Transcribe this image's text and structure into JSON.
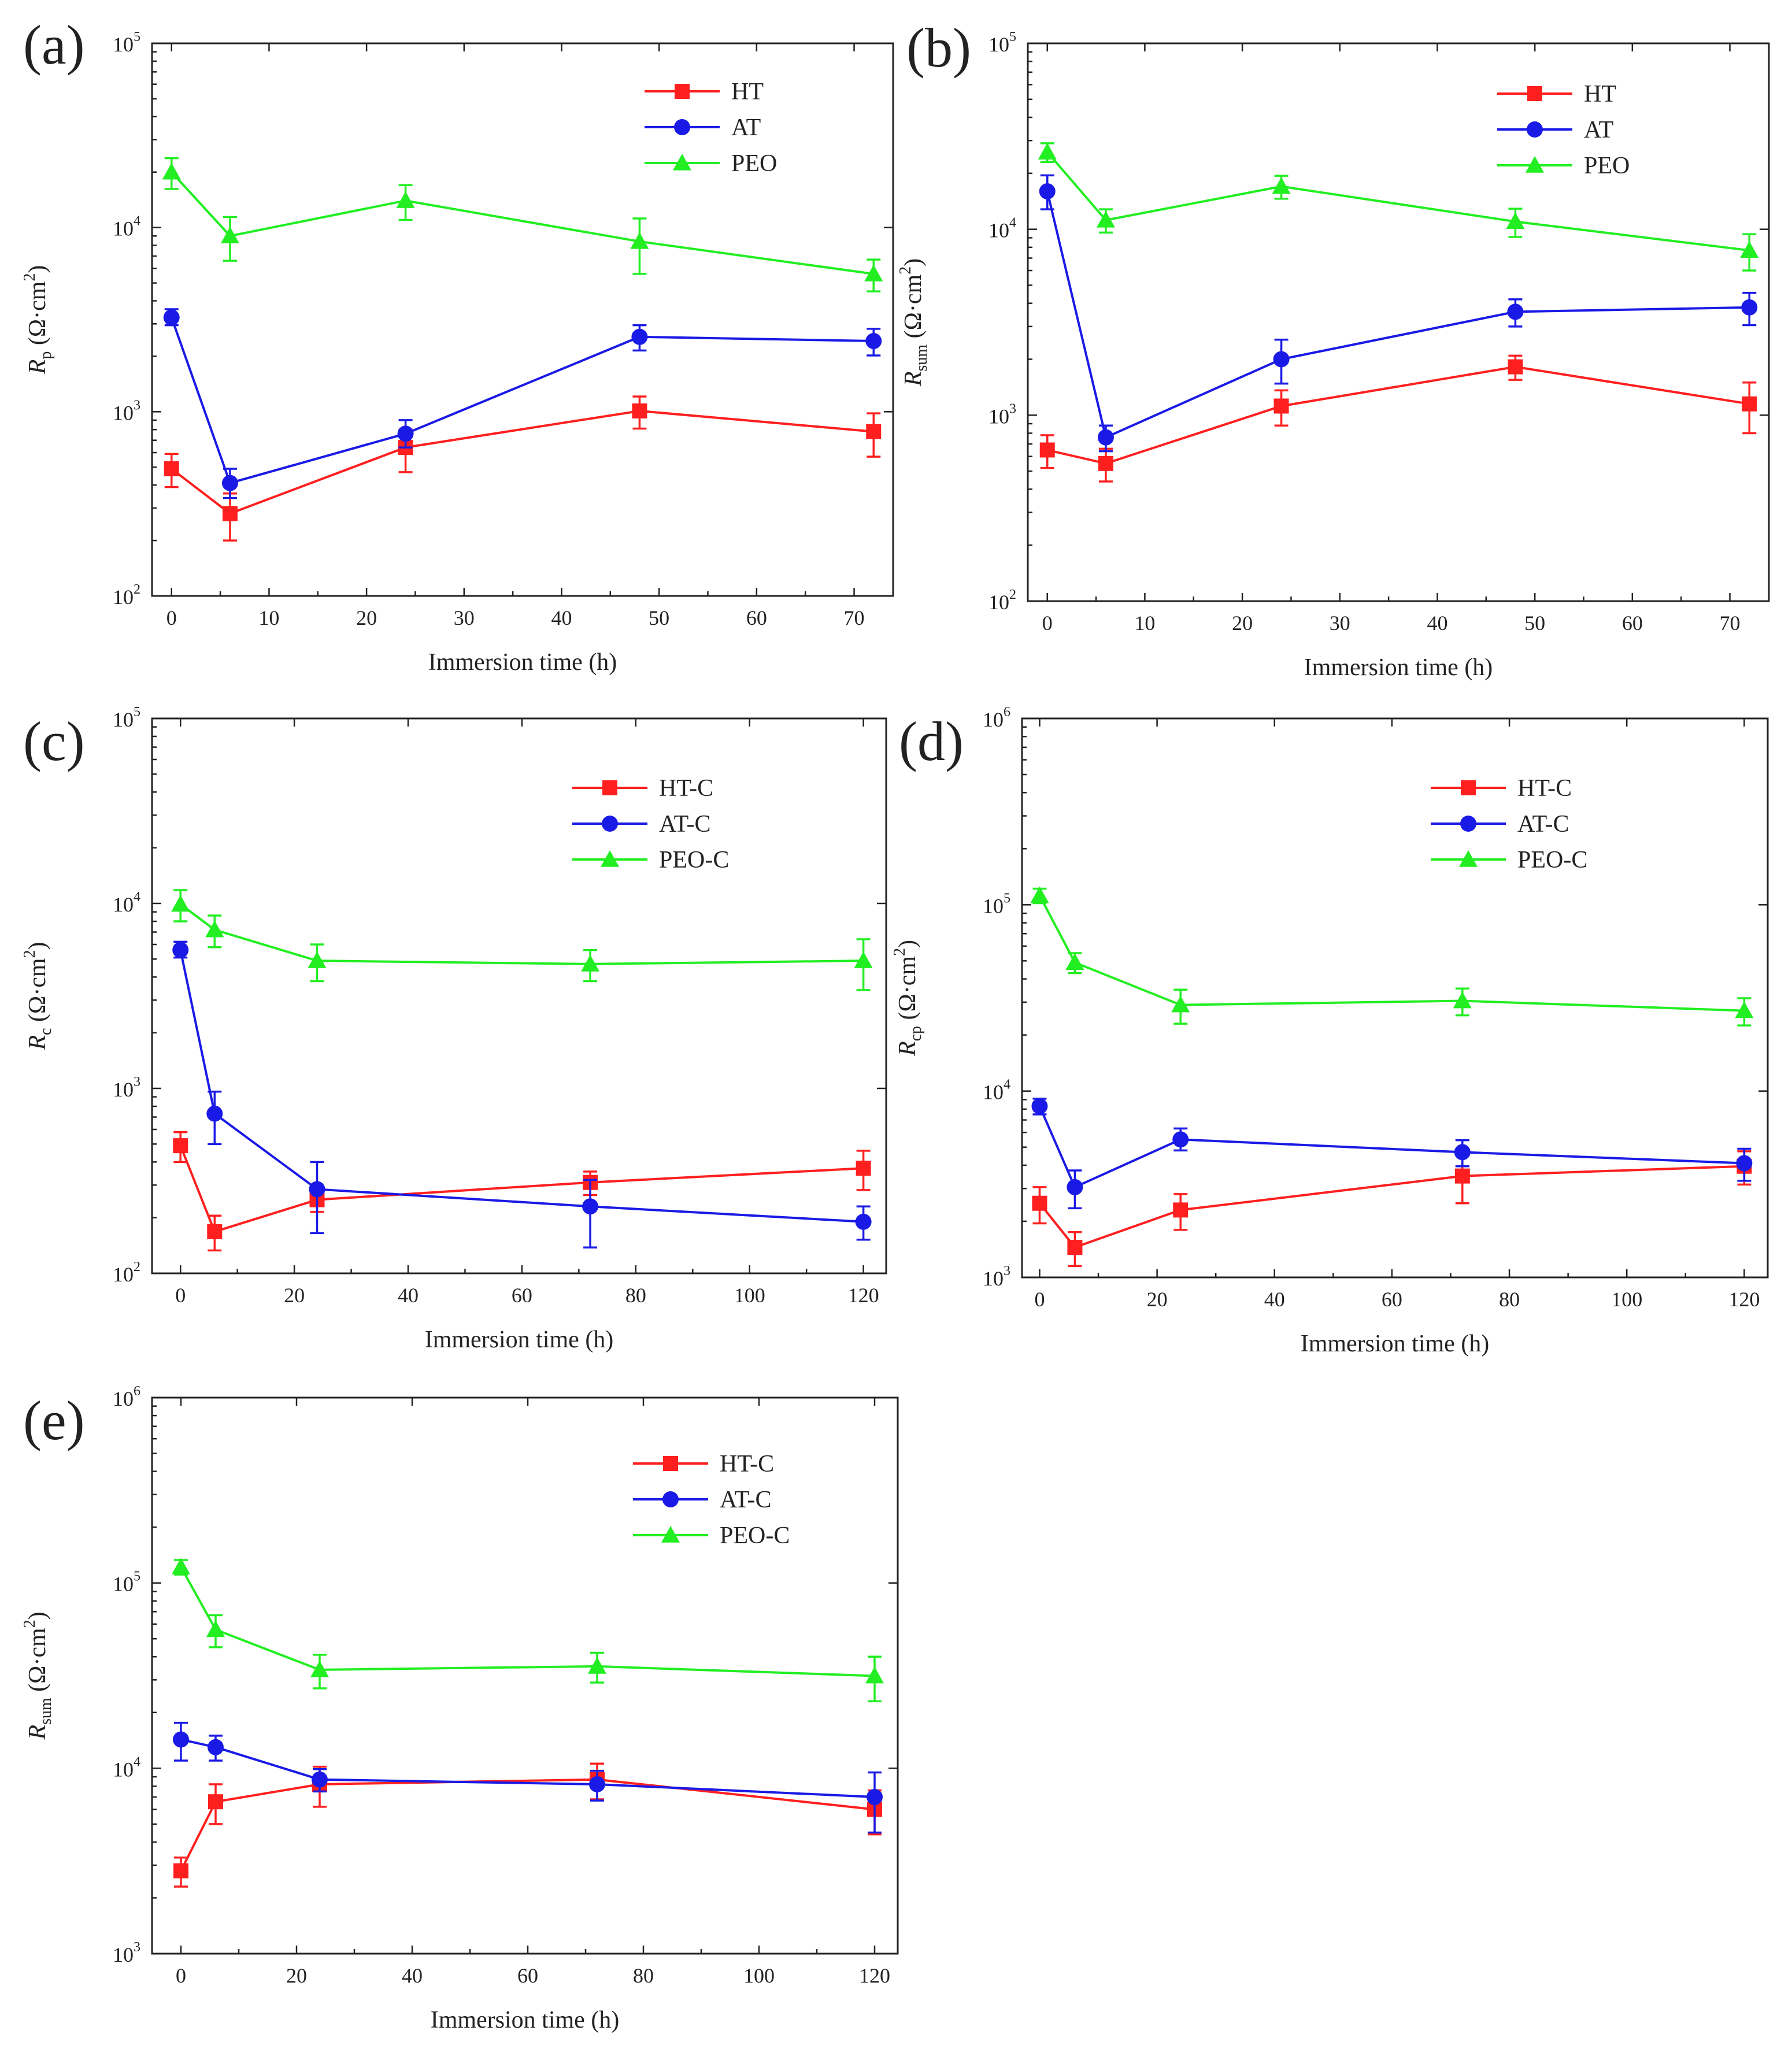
{
  "colors": {
    "red": "#ff1f1f",
    "blue": "#1a1ae6",
    "green": "#22ee22",
    "axis": "#222222"
  },
  "chart_data": [
    {
      "panel": "(a)",
      "type": "line",
      "x": [
        0,
        6,
        24,
        48,
        72
      ],
      "xlim": [
        -2,
        74
      ],
      "xticks": [
        0,
        10,
        20,
        30,
        40,
        50,
        60,
        70
      ],
      "xlabel": "Immersion time (h)",
      "yscale": "log",
      "ylim": [
        100,
        100000
      ],
      "yticks": [
        {
          "mant": "10",
          "exp": "2"
        },
        {
          "mant": "10",
          "exp": "3"
        },
        {
          "mant": "10",
          "exp": "4"
        },
        {
          "mant": "10",
          "exp": "5"
        }
      ],
      "ylabel": {
        "main": "R",
        "sub": "p",
        "unit": " (Ω·cm",
        "sup": "2",
        "close": ")"
      },
      "series": [
        {
          "name": "HT",
          "color": "red",
          "marker": "square",
          "values": [
            490,
            280,
            640,
            1010,
            780
          ],
          "err_low": [
            390,
            200,
            470,
            810,
            570
          ],
          "err_high": [
            590,
            360,
            800,
            1210,
            980
          ]
        },
        {
          "name": "AT",
          "color": "blue",
          "marker": "circle",
          "values": [
            3250,
            410,
            760,
            2550,
            2420
          ],
          "err_low": [
            2950,
            340,
            640,
            2150,
            2020
          ],
          "err_high": [
            3600,
            490,
            900,
            2950,
            2820
          ]
        },
        {
          "name": "PEO",
          "color": "green",
          "marker": "triangle",
          "values": [
            20000,
            9000,
            14000,
            8400,
            5600
          ],
          "err_low": [
            16200,
            6600,
            11000,
            5600,
            4500
          ],
          "err_high": [
            23800,
            11400,
            17000,
            11200,
            6700
          ]
        }
      ]
    },
    {
      "panel": "(b)",
      "type": "line",
      "x": [
        0,
        6,
        24,
        48,
        72
      ],
      "xlim": [
        -2,
        74
      ],
      "xticks": [
        0,
        10,
        20,
        30,
        40,
        50,
        60,
        70
      ],
      "xlabel": "Immersion time (h)",
      "yscale": "log",
      "ylim": [
        100,
        100000
      ],
      "yticks": [
        {
          "mant": "10",
          "exp": "2"
        },
        {
          "mant": "10",
          "exp": "3"
        },
        {
          "mant": "10",
          "exp": "4"
        },
        {
          "mant": "10",
          "exp": "5"
        }
      ],
      "ylabel": {
        "main": "R",
        "sub": "sum",
        "unit": " (Ω·cm",
        "sup": "2",
        "close": ")"
      },
      "series": [
        {
          "name": "HT",
          "color": "red",
          "marker": "square",
          "values": [
            650,
            550,
            1120,
            1820,
            1150
          ],
          "err_low": [
            520,
            440,
            880,
            1550,
            800
          ],
          "err_high": [
            780,
            660,
            1360,
            2090,
            1500
          ]
        },
        {
          "name": "AT",
          "color": "blue",
          "marker": "circle",
          "values": [
            16000,
            760,
            2000,
            3600,
            3800
          ],
          "err_low": [
            12800,
            640,
            1480,
            3000,
            3050
          ],
          "err_high": [
            19500,
            880,
            2550,
            4200,
            4550
          ]
        },
        {
          "name": "PEO",
          "color": "green",
          "marker": "triangle",
          "values": [
            26000,
            11200,
            17000,
            11000,
            7700
          ],
          "err_low": [
            23000,
            9600,
            14600,
            9100,
            6000
          ],
          "err_high": [
            29000,
            12800,
            19400,
            12900,
            9400
          ]
        }
      ]
    },
    {
      "panel": "(c)",
      "type": "line",
      "x": [
        0,
        6,
        24,
        72,
        120
      ],
      "xlim": [
        -5,
        124
      ],
      "xticks": [
        0,
        20,
        40,
        60,
        80,
        100,
        120
      ],
      "xlabel": "Immersion time (h)",
      "yscale": "log",
      "ylim": [
        100,
        100000
      ],
      "yticks": [
        {
          "mant": "10",
          "exp": "2"
        },
        {
          "mant": "10",
          "exp": "3"
        },
        {
          "mant": "10",
          "exp": "4"
        },
        {
          "mant": "10",
          "exp": "5"
        }
      ],
      "ylabel": {
        "main": "R",
        "sub": "c",
        "unit": " (Ω·cm",
        "sup": "2",
        "close": ")"
      },
      "series": [
        {
          "name": "HT-C",
          "color": "red",
          "marker": "square",
          "values": [
            490,
            168,
            250,
            310,
            370
          ],
          "err_low": [
            400,
            133,
            215,
            265,
            282
          ],
          "err_high": [
            580,
            205,
            285,
            355,
            460
          ]
        },
        {
          "name": "AT-C",
          "color": "blue",
          "marker": "circle",
          "values": [
            5600,
            730,
            285,
            230,
            190
          ],
          "err_low": [
            5100,
            500,
            165,
            138,
            152
          ],
          "err_high": [
            6200,
            960,
            400,
            320,
            230
          ]
        },
        {
          "name": "PEO-C",
          "color": "green",
          "marker": "triangle",
          "values": [
            9900,
            7200,
            4900,
            4700,
            4900
          ],
          "err_low": [
            8000,
            5800,
            3800,
            3800,
            3400
          ],
          "err_high": [
            11800,
            8600,
            6000,
            5600,
            6400
          ]
        }
      ]
    },
    {
      "panel": "(d)",
      "type": "line",
      "x": [
        0,
        6,
        24,
        72,
        120
      ],
      "xlim": [
        -3,
        124
      ],
      "xticks": [
        0,
        20,
        40,
        60,
        80,
        100,
        120
      ],
      "xlabel": "Immersion time (h)",
      "yscale": "log",
      "ylim": [
        1000,
        1000000
      ],
      "yticks": [
        {
          "mant": "10",
          "exp": "3"
        },
        {
          "mant": "10",
          "exp": "4"
        },
        {
          "mant": "10",
          "exp": "5"
        },
        {
          "mant": "10",
          "exp": "6"
        }
      ],
      "ylabel": {
        "main": "R",
        "sub": "cp",
        "unit": " (Ω·cm",
        "sup": "2",
        "close": ")"
      },
      "series": [
        {
          "name": "HT-C",
          "color": "red",
          "marker": "square",
          "values": [
            2500,
            1450,
            2300,
            3500,
            3950
          ],
          "err_low": [
            1950,
            1150,
            1800,
            2500,
            3150
          ],
          "err_high": [
            3050,
            1750,
            2800,
            4500,
            4750
          ]
        },
        {
          "name": "AT-C",
          "color": "blue",
          "marker": "circle",
          "values": [
            8300,
            3050,
            5500,
            4700,
            4100
          ],
          "err_low": [
            7500,
            2350,
            4800,
            3950,
            3300
          ],
          "err_high": [
            9100,
            3750,
            6300,
            5450,
            4900
          ]
        },
        {
          "name": "PEO-C",
          "color": "green",
          "marker": "triangle",
          "values": [
            112000,
            49000,
            29000,
            30500,
            27000
          ],
          "err_low": [
            102000,
            43000,
            23000,
            25500,
            22500
          ],
          "err_high": [
            122000,
            55000,
            35000,
            35500,
            31500
          ]
        }
      ]
    },
    {
      "panel": "(e)",
      "type": "line",
      "x": [
        0,
        6,
        24,
        72,
        120
      ],
      "xlim": [
        -5,
        124
      ],
      "xticks": [
        0,
        20,
        40,
        60,
        80,
        100,
        120
      ],
      "xlabel": "Immersion time (h)",
      "yscale": "log",
      "ylim": [
        1000,
        1000000
      ],
      "yticks": [
        {
          "mant": "10",
          "exp": "3"
        },
        {
          "mant": "10",
          "exp": "4"
        },
        {
          "mant": "10",
          "exp": "5"
        },
        {
          "mant": "10",
          "exp": "6"
        }
      ],
      "ylabel": {
        "main": "R",
        "sub": "sum",
        "unit": " (Ω·cm",
        "sup": "2",
        "close": ")"
      },
      "series": [
        {
          "name": "HT-C",
          "color": "red",
          "marker": "square",
          "values": [
            2800,
            6600,
            8200,
            8700,
            6000
          ],
          "err_low": [
            2300,
            5000,
            6200,
            6800,
            4400
          ],
          "err_high": [
            3300,
            8200,
            10200,
            10600,
            7600
          ]
        },
        {
          "name": "AT-C",
          "color": "blue",
          "marker": "circle",
          "values": [
            14300,
            13000,
            8700,
            8200,
            7000
          ],
          "err_low": [
            11000,
            11000,
            7500,
            6700,
            4500
          ],
          "err_high": [
            17600,
            15000,
            9900,
            9700,
            9500
          ]
        },
        {
          "name": "PEO-C",
          "color": "green",
          "marker": "triangle",
          "values": [
            122000,
            56000,
            34000,
            35500,
            31500
          ],
          "err_low": [
            111000,
            45000,
            27000,
            29000,
            23000
          ],
          "err_high": [
            133000,
            67000,
            41000,
            42000,
            40000
          ]
        }
      ]
    }
  ]
}
